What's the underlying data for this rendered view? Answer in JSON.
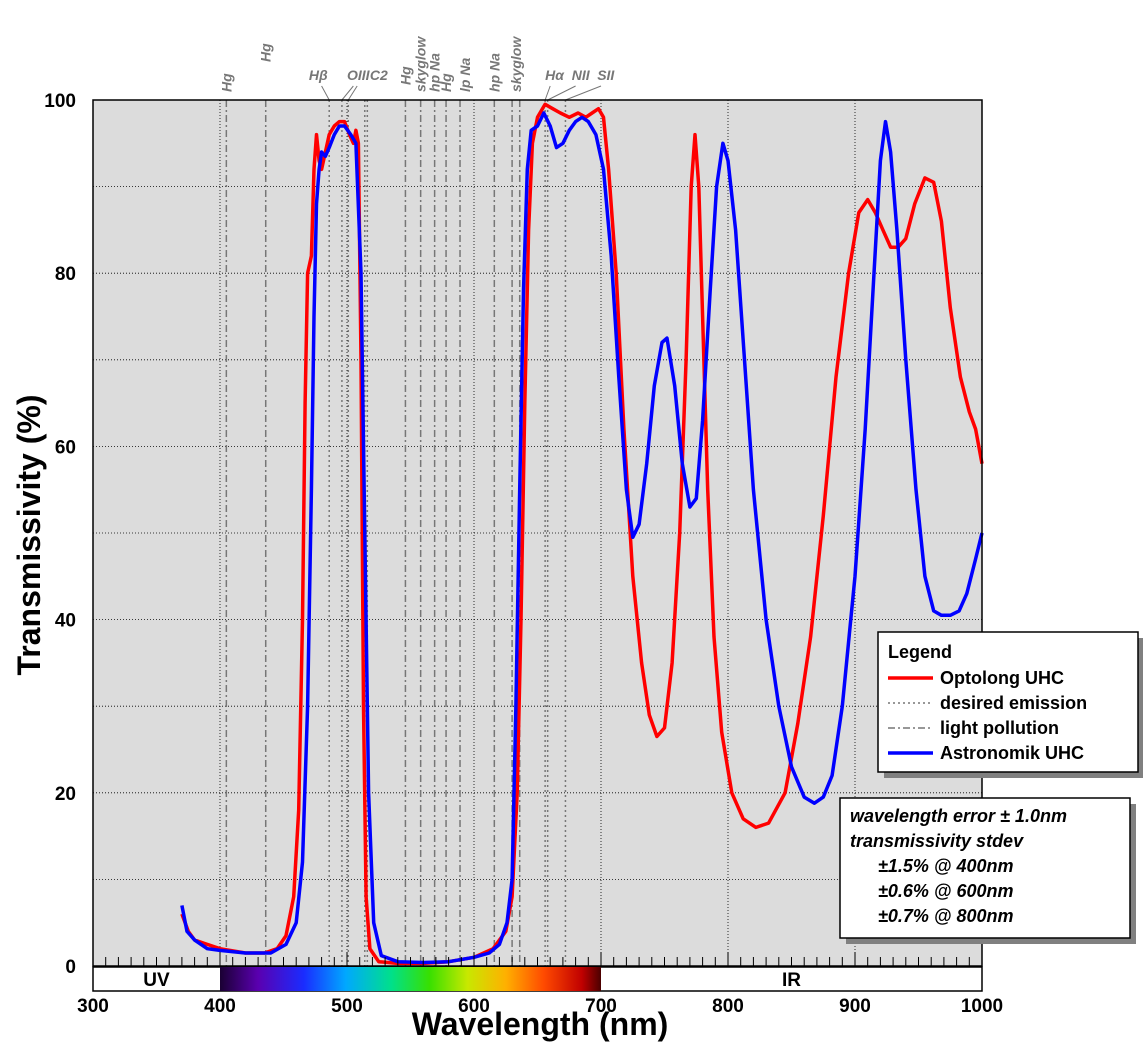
{
  "chart_data": {
    "type": "line",
    "xlabel": "Wavelength (nm)",
    "ylabel": "Transmissivity (%)",
    "xlim": [
      300,
      1000
    ],
    "ylim": [
      0,
      100
    ],
    "x_ticks": [
      300,
      400,
      500,
      600,
      700,
      800,
      900,
      1000
    ],
    "y_ticks": [
      0,
      20,
      40,
      60,
      80,
      100
    ],
    "grid": true,
    "legend_position": "right",
    "colors": {
      "optolong": "#ff0000",
      "astronomik": "#0000ff",
      "plot_bg": "#dcdcdc"
    },
    "spectrum_bands": {
      "uv_label": "UV",
      "ir_label": "IR",
      "visible_range": [
        400,
        700
      ]
    },
    "legend": {
      "title": "Legend",
      "entries": [
        {
          "label": "Optolong UHC",
          "style": "solid",
          "color": "#ff0000"
        },
        {
          "label": "desired emission",
          "style": "dotted",
          "color": "#777777"
        },
        {
          "label": "light pollution",
          "style": "dashdot",
          "color": "#777777"
        },
        {
          "label": "Astronomik UHC",
          "style": "solid",
          "color": "#0000ff"
        }
      ]
    },
    "notes": [
      "wavelength error ± 1.0nm",
      "transmissivity stdev",
      "±1.5% @ 400nm",
      "±0.6% @ 600nm",
      "±0.7% @ 800nm"
    ],
    "emission_lines": [
      {
        "label": "Hg",
        "wavelength": 405,
        "style": "dashdot"
      },
      {
        "label": "Hg",
        "wavelength": 436,
        "style": "dashdot"
      },
      {
        "label": "Hβ",
        "wavelength": 486,
        "style": "dotted"
      },
      {
        "label": "OIII",
        "wavelength": 496,
        "style": "dotted"
      },
      {
        "label": "OIII",
        "wavelength": 501,
        "style": "dotted"
      },
      {
        "label": "C2",
        "wavelength": 514,
        "style": "dotted"
      },
      {
        "label": "C2",
        "wavelength": 516,
        "style": "dotted"
      },
      {
        "label": "Hg",
        "wavelength": 546,
        "style": "dashdot"
      },
      {
        "label": "skyglow",
        "wavelength": 558,
        "style": "dashdot"
      },
      {
        "label": "hp Na",
        "wavelength": 569,
        "style": "dashdot"
      },
      {
        "label": "Hg",
        "wavelength": 578,
        "style": "dashdot"
      },
      {
        "label": "lp Na",
        "wavelength": 589,
        "style": "dashdot"
      },
      {
        "label": "hp Na",
        "wavelength": 616,
        "style": "dashdot"
      },
      {
        "label": "skyglow",
        "wavelength": 630,
        "style": "dashdot"
      },
      {
        "label": "skyglow",
        "wavelength": 636,
        "style": "dashdot"
      },
      {
        "label": "Hα",
        "wavelength": 656,
        "style": "dotted"
      },
      {
        "label": "NII",
        "wavelength": 658,
        "style": "dotted"
      },
      {
        "label": "SII",
        "wavelength": 672,
        "style": "dotted"
      }
    ],
    "series": [
      {
        "name": "Optolong UHC",
        "color": "#ff0000",
        "points": [
          [
            370,
            6
          ],
          [
            375,
            4
          ],
          [
            380,
            3
          ],
          [
            390,
            2.5
          ],
          [
            400,
            2
          ],
          [
            420,
            1.5
          ],
          [
            435,
            1.5
          ],
          [
            445,
            2
          ],
          [
            452,
            3.5
          ],
          [
            458,
            8
          ],
          [
            462,
            18
          ],
          [
            465,
            40
          ],
          [
            467,
            65
          ],
          [
            469,
            80
          ],
          [
            472,
            82
          ],
          [
            474,
            92
          ],
          [
            476,
            96
          ],
          [
            478,
            93
          ],
          [
            480,
            92
          ],
          [
            483,
            94
          ],
          [
            486,
            96
          ],
          [
            490,
            97
          ],
          [
            494,
            97.5
          ],
          [
            498,
            97.5
          ],
          [
            502,
            96
          ],
          [
            505,
            95
          ],
          [
            507,
            96.5
          ],
          [
            509,
            95
          ],
          [
            511,
            70
          ],
          [
            513,
            30
          ],
          [
            515,
            8
          ],
          [
            518,
            2
          ],
          [
            525,
            0.5
          ],
          [
            540,
            0.3
          ],
          [
            560,
            0.3
          ],
          [
            580,
            0.5
          ],
          [
            600,
            1
          ],
          [
            615,
            2
          ],
          [
            625,
            4
          ],
          [
            630,
            8
          ],
          [
            634,
            20
          ],
          [
            637,
            40
          ],
          [
            640,
            65
          ],
          [
            643,
            85
          ],
          [
            646,
            95
          ],
          [
            650,
            98
          ],
          [
            656,
            99.5
          ],
          [
            662,
            99
          ],
          [
            668,
            98.5
          ],
          [
            675,
            98
          ],
          [
            682,
            98.5
          ],
          [
            688,
            98
          ],
          [
            693,
            98.5
          ],
          [
            698,
            99
          ],
          [
            702,
            98
          ],
          [
            706,
            92
          ],
          [
            712,
            80
          ],
          [
            718,
            62
          ],
          [
            725,
            45
          ],
          [
            732,
            35
          ],
          [
            738,
            29
          ],
          [
            744,
            26.5
          ],
          [
            750,
            27.5
          ],
          [
            756,
            35
          ],
          [
            762,
            50
          ],
          [
            767,
            70
          ],
          [
            771,
            90
          ],
          [
            774,
            96
          ],
          [
            777,
            90
          ],
          [
            780,
            75
          ],
          [
            784,
            55
          ],
          [
            789,
            38
          ],
          [
            795,
            27
          ],
          [
            803,
            20
          ],
          [
            812,
            17
          ],
          [
            822,
            16
          ],
          [
            832,
            16.5
          ],
          [
            845,
            20
          ],
          [
            855,
            28
          ],
          [
            865,
            38
          ],
          [
            875,
            52
          ],
          [
            885,
            68
          ],
          [
            895,
            80
          ],
          [
            903,
            87
          ],
          [
            910,
            88.5
          ],
          [
            916,
            87
          ],
          [
            922,
            85
          ],
          [
            928,
            83
          ],
          [
            934,
            83
          ],
          [
            940,
            84
          ],
          [
            947,
            88
          ],
          [
            955,
            91
          ],
          [
            962,
            90.5
          ],
          [
            968,
            86
          ],
          [
            975,
            76
          ],
          [
            983,
            68
          ],
          [
            990,
            64
          ],
          [
            995,
            62
          ],
          [
            1000,
            58
          ]
        ]
      },
      {
        "name": "Astronomik UHC",
        "color": "#0000ff",
        "points": [
          [
            370,
            7
          ],
          [
            374,
            4
          ],
          [
            380,
            3
          ],
          [
            390,
            2
          ],
          [
            400,
            1.8
          ],
          [
            420,
            1.5
          ],
          [
            440,
            1.5
          ],
          [
            452,
            2.5
          ],
          [
            460,
            5
          ],
          [
            465,
            12
          ],
          [
            469,
            30
          ],
          [
            472,
            55
          ],
          [
            474,
            75
          ],
          [
            476,
            88
          ],
          [
            478,
            92
          ],
          [
            480,
            94
          ],
          [
            483,
            93.5
          ],
          [
            486,
            94.5
          ],
          [
            490,
            96
          ],
          [
            494,
            97
          ],
          [
            498,
            97
          ],
          [
            503,
            96
          ],
          [
            507,
            95
          ],
          [
            511,
            80
          ],
          [
            514,
            50
          ],
          [
            517,
            20
          ],
          [
            521,
            5
          ],
          [
            527,
            1.2
          ],
          [
            540,
            0.5
          ],
          [
            560,
            0.4
          ],
          [
            580,
            0.5
          ],
          [
            600,
            1
          ],
          [
            612,
            1.5
          ],
          [
            620,
            2.5
          ],
          [
            626,
            5
          ],
          [
            630,
            10
          ],
          [
            633,
            30
          ],
          [
            636,
            55
          ],
          [
            639,
            78
          ],
          [
            642,
            92
          ],
          [
            645,
            96.5
          ],
          [
            650,
            97
          ],
          [
            655,
            98.5
          ],
          [
            660,
            97
          ],
          [
            665,
            94.5
          ],
          [
            670,
            95
          ],
          [
            675,
            96.5
          ],
          [
            680,
            97.5
          ],
          [
            685,
            98
          ],
          [
            690,
            97.5
          ],
          [
            696,
            96
          ],
          [
            702,
            92
          ],
          [
            708,
            82
          ],
          [
            714,
            68
          ],
          [
            720,
            55
          ],
          [
            725,
            49.5
          ],
          [
            730,
            51
          ],
          [
            736,
            58
          ],
          [
            742,
            67
          ],
          [
            748,
            72
          ],
          [
            752,
            72.5
          ],
          [
            758,
            67
          ],
          [
            764,
            58
          ],
          [
            770,
            53
          ],
          [
            775,
            54
          ],
          [
            780,
            63
          ],
          [
            786,
            78
          ],
          [
            791,
            90
          ],
          [
            796,
            95
          ],
          [
            800,
            93
          ],
          [
            806,
            85
          ],
          [
            813,
            70
          ],
          [
            820,
            55
          ],
          [
            830,
            40
          ],
          [
            840,
            30
          ],
          [
            850,
            23
          ],
          [
            860,
            19.5
          ],
          [
            868,
            18.8
          ],
          [
            875,
            19.5
          ],
          [
            882,
            22
          ],
          [
            890,
            30
          ],
          [
            900,
            45
          ],
          [
            908,
            62
          ],
          [
            915,
            80
          ],
          [
            920,
            93
          ],
          [
            924,
            97.5
          ],
          [
            928,
            94
          ],
          [
            933,
            85
          ],
          [
            940,
            70
          ],
          [
            948,
            55
          ],
          [
            955,
            45
          ],
          [
            962,
            41
          ],
          [
            968,
            40.5
          ],
          [
            975,
            40.5
          ],
          [
            982,
            41
          ],
          [
            988,
            43
          ],
          [
            995,
            47
          ],
          [
            1000,
            50
          ]
        ]
      }
    ]
  }
}
